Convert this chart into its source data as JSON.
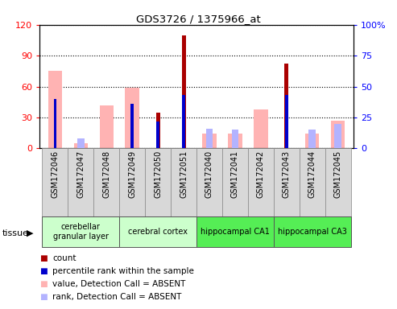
{
  "title": "GDS3726 / 1375966_at",
  "samples": [
    "GSM172046",
    "GSM172047",
    "GSM172048",
    "GSM172049",
    "GSM172050",
    "GSM172051",
    "GSM172040",
    "GSM172041",
    "GSM172042",
    "GSM172043",
    "GSM172044",
    "GSM172045"
  ],
  "count": [
    0,
    0,
    0,
    0,
    35,
    110,
    0,
    0,
    0,
    82,
    0,
    0
  ],
  "percentile_rank": [
    40,
    0,
    0,
    36,
    22,
    43,
    0,
    0,
    0,
    43,
    0,
    0
  ],
  "value_absent": [
    75,
    5,
    42,
    59,
    0,
    0,
    14,
    14,
    38,
    0,
    14,
    27
  ],
  "rank_absent": [
    0,
    8,
    0,
    0,
    0,
    0,
    16,
    15,
    0,
    0,
    15,
    20
  ],
  "ylim_left": [
    0,
    120
  ],
  "ylim_right": [
    0,
    100
  ],
  "yticks_left": [
    0,
    30,
    60,
    90,
    120
  ],
  "yticks_right": [
    0,
    25,
    50,
    75,
    100
  ],
  "color_count": "#aa0000",
  "color_rank": "#0000cc",
  "color_value_absent": "#ffb3b3",
  "color_rank_absent": "#b3b3ff",
  "tissues": [
    {
      "label": "cerebellar\ngranular layer",
      "start": 0,
      "end": 3,
      "color": "#ccffcc"
    },
    {
      "label": "cerebral cortex",
      "start": 3,
      "end": 6,
      "color": "#ccffcc"
    },
    {
      "label": "hippocampal CA1",
      "start": 6,
      "end": 9,
      "color": "#55ee55"
    },
    {
      "label": "hippocampal CA3",
      "start": 9,
      "end": 12,
      "color": "#55ee55"
    }
  ],
  "legend_items": [
    {
      "label": "count",
      "color": "#aa0000"
    },
    {
      "label": "percentile rank within the sample",
      "color": "#0000cc"
    },
    {
      "label": "value, Detection Call = ABSENT",
      "color": "#ffb3b3"
    },
    {
      "label": "rank, Detection Call = ABSENT",
      "color": "#b3b3ff"
    }
  ],
  "bar_width": 0.55,
  "tissue_label": "tissue",
  "fig_width": 4.93,
  "fig_height": 3.84,
  "fig_dpi": 100
}
